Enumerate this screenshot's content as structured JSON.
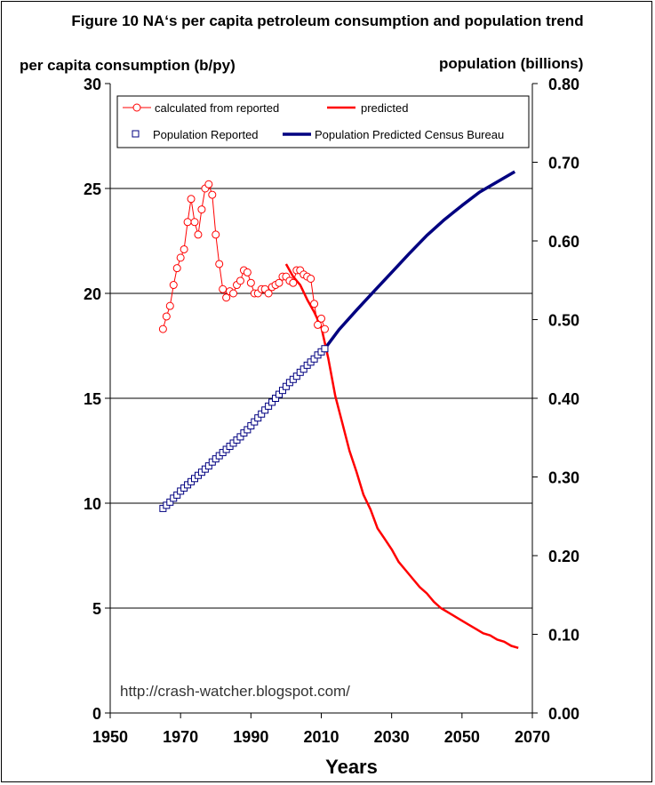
{
  "title": "Figure 10 NA‘s per capita petroleum consumption and population trend",
  "ylabel_left": "per capita consumption (b/py)",
  "ylabel_right": "population (billions)",
  "xlabel": "Years",
  "source_url": "http://crash-watcher.blogspot.com/",
  "chart_data": {
    "type": "line",
    "title": "Figure 10 NA‘s per capita petroleum consumption and population trend",
    "xlabel": "Years",
    "ylabel": "per capita consumption (b/py)",
    "ylabel_right": "population (billions)",
    "xlim": [
      1950,
      2070
    ],
    "ylim": [
      0,
      30
    ],
    "ylim_right": [
      0,
      0.8
    ],
    "x_ticks": [
      "1950",
      "1970",
      "1990",
      "2010",
      "2030",
      "2050",
      "2070"
    ],
    "y_ticks_left": [
      "0",
      "5",
      "10",
      "15",
      "20",
      "25",
      "30"
    ],
    "y_ticks_right": [
      "0.00",
      "0.10",
      "0.20",
      "0.30",
      "0.40",
      "0.50",
      "0.60",
      "0.70",
      "0.80"
    ],
    "grid": "horizontal",
    "legend_position": "top",
    "series": [
      {
        "name": "calculated from reported",
        "axis": "left",
        "color": "#ff0000",
        "style": "line-with-open-circles",
        "x": [
          1965,
          1966,
          1967,
          1968,
          1969,
          1970,
          1971,
          1972,
          1973,
          1974,
          1975,
          1976,
          1977,
          1978,
          1979,
          1980,
          1981,
          1982,
          1983,
          1984,
          1985,
          1986,
          1987,
          1988,
          1989,
          1990,
          1991,
          1992,
          1993,
          1994,
          1995,
          1996,
          1997,
          1998,
          1999,
          2000,
          2001,
          2002,
          2003,
          2004,
          2005,
          2006,
          2007,
          2008,
          2009,
          2010,
          2011
        ],
        "values": [
          18.3,
          18.9,
          19.4,
          20.4,
          21.2,
          21.7,
          22.1,
          23.4,
          24.5,
          23.4,
          22.8,
          24.0,
          25.0,
          25.2,
          24.7,
          22.8,
          21.4,
          20.2,
          19.8,
          20.1,
          20.0,
          20.4,
          20.6,
          21.1,
          21.0,
          20.5,
          20.0,
          20.0,
          20.2,
          20.2,
          20.0,
          20.3,
          20.4,
          20.5,
          20.8,
          20.8,
          20.6,
          20.5,
          21.1,
          21.1,
          20.9,
          20.8,
          20.7,
          19.5,
          18.5,
          18.8,
          18.3
        ]
      },
      {
        "name": "predicted",
        "axis": "left",
        "color": "#ff0000",
        "style": "line",
        "x": [
          2000,
          2002,
          2004,
          2006,
          2008,
          2010,
          2012,
          2014,
          2016,
          2018,
          2020,
          2022,
          2024,
          2026,
          2028,
          2030,
          2032,
          2034,
          2036,
          2038,
          2040,
          2042,
          2044,
          2046,
          2048,
          2050,
          2052,
          2054,
          2056,
          2058,
          2060,
          2062,
          2064,
          2066
        ],
        "values": [
          21.4,
          20.8,
          20.4,
          19.7,
          19.1,
          18.4,
          16.9,
          15.1,
          13.8,
          12.5,
          11.5,
          10.4,
          9.7,
          8.8,
          8.3,
          7.8,
          7.2,
          6.8,
          6.4,
          6.0,
          5.7,
          5.3,
          5.0,
          4.8,
          4.6,
          4.4,
          4.2,
          4.0,
          3.8,
          3.7,
          3.5,
          3.4,
          3.2,
          3.1
        ]
      },
      {
        "name": "Population Reported",
        "axis": "right",
        "color": "#000080",
        "style": "open-squares",
        "x": [
          1965,
          1966,
          1967,
          1968,
          1969,
          1970,
          1971,
          1972,
          1973,
          1974,
          1975,
          1976,
          1977,
          1978,
          1979,
          1980,
          1981,
          1982,
          1983,
          1984,
          1985,
          1986,
          1987,
          1988,
          1989,
          1990,
          1991,
          1992,
          1993,
          1994,
          1995,
          1996,
          1997,
          1998,
          1999,
          2000,
          2001,
          2002,
          2003,
          2004,
          2005,
          2006,
          2007,
          2008,
          2009,
          2010,
          2011
        ],
        "values": [
          0.26,
          0.264,
          0.268,
          0.273,
          0.277,
          0.282,
          0.286,
          0.29,
          0.294,
          0.298,
          0.302,
          0.306,
          0.31,
          0.314,
          0.319,
          0.323,
          0.327,
          0.331,
          0.335,
          0.339,
          0.343,
          0.347,
          0.351,
          0.356,
          0.36,
          0.365,
          0.37,
          0.375,
          0.38,
          0.385,
          0.39,
          0.395,
          0.4,
          0.405,
          0.41,
          0.415,
          0.42,
          0.424,
          0.428,
          0.433,
          0.437,
          0.442,
          0.446,
          0.45,
          0.455,
          0.459,
          0.463
        ]
      },
      {
        "name": "Population Predicted Census Bureau",
        "axis": "right",
        "color": "#000080",
        "style": "line",
        "x": [
          2011,
          2015,
          2020,
          2025,
          2030,
          2035,
          2040,
          2045,
          2050,
          2055,
          2060,
          2065
        ],
        "values": [
          0.463,
          0.487,
          0.512,
          0.536,
          0.56,
          0.584,
          0.607,
          0.627,
          0.645,
          0.662,
          0.675,
          0.688
        ]
      }
    ]
  }
}
